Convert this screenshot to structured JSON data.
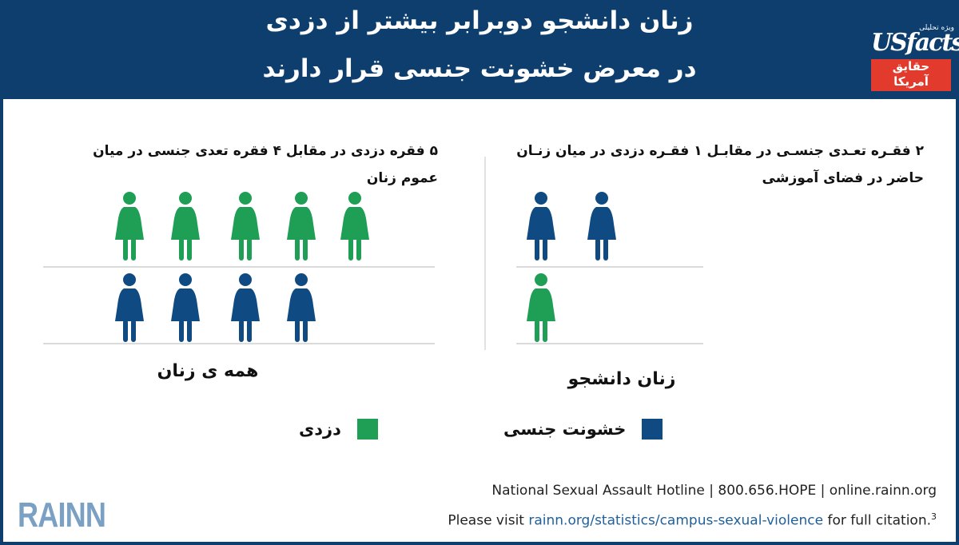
{
  "header": {
    "title_line1": "زنان دانشجو دوبرابر بیشتر از دزدی",
    "title_line2": "در معرض خشونت جنسی قرار دارند",
    "logo_tag": "ویژه تحلیلی",
    "logo_brand": "USfacts",
    "logo_box_line1": "حقایق",
    "logo_box_line2": "آمریکا"
  },
  "chart_data": {
    "type": "pictogram",
    "series_names": [
      "دزدی",
      "خشونت جنسی"
    ],
    "colors": {
      "theft": "#1f9e55",
      "violence": "#0f4b82"
    },
    "groups": [
      {
        "label": "همه ی زنان",
        "caption": "۵ فقره دزدی در مقابل ۴ فقره تعدی جنسی در میان عموم زنان",
        "theft": 5,
        "violence": 4
      },
      {
        "label": "زنان دانشجو",
        "caption": "۲ فقـره تعـدی جنسـی در مقابـل ۱ فقـره دزدی در میان زنـان حاضر در فضای آموزشی",
        "theft": 1,
        "violence": 2
      }
    ]
  },
  "legend": {
    "theft_label": "دزدی",
    "violence_label": "خشونت جنسی"
  },
  "footer": {
    "brand": "RAINN",
    "hotline": "National Sexual Assault Hotline | 800.656.HOPE | online.rainn.org",
    "visit_prefix": "Please visit ",
    "visit_link": "rainn.org/statistics/campus-sexual-violence",
    "visit_suffix": " for full citation.",
    "footnote": "3"
  }
}
